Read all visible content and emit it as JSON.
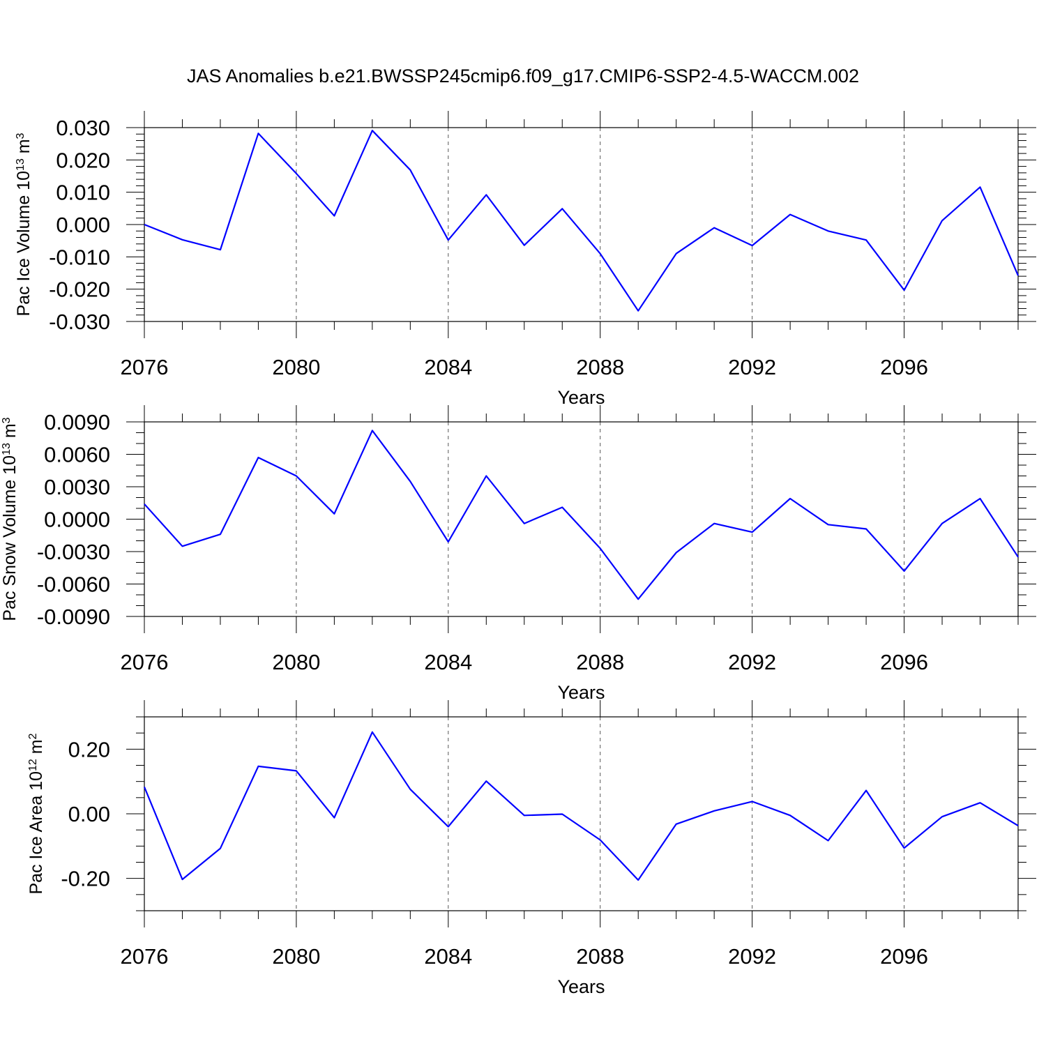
{
  "title": "JAS Anomalies b.e21.BWSSP245cmip6.f09_g17.CMIP6-SSP2-4.5-WACCM.002",
  "line_color": "#0000ff",
  "chart_data": [
    {
      "type": "line",
      "ylabel_main": "Pac Ice Volume 10",
      "ylabel_exp": "13",
      "ylabel_unit": " m",
      "ylabel_unit_exp": "3",
      "xlabel": "Years",
      "xlim": [
        2076,
        2099
      ],
      "ylim": [
        -0.03,
        0.03
      ],
      "yticks": [
        -0.03,
        -0.02,
        -0.01,
        0.0,
        0.01,
        0.02,
        0.03
      ],
      "ytick_labels": [
        "-0.030",
        "-0.020",
        "-0.010",
        "0.000",
        "0.010",
        "0.020",
        "0.030"
      ],
      "yminor_step": 0.002,
      "xticks": [
        2076,
        2080,
        2084,
        2088,
        2092,
        2096
      ],
      "xtick_labels": [
        "2076",
        "2080",
        "2084",
        "2088",
        "2092",
        "2096"
      ],
      "x": [
        2076,
        2077,
        2078,
        2079,
        2080,
        2081,
        2082,
        2083,
        2084,
        2085,
        2086,
        2087,
        2088,
        2089,
        2090,
        2091,
        2092,
        2093,
        2094,
        2095,
        2096,
        2097,
        2098,
        2099
      ],
      "values": [
        0.0,
        -0.0047,
        -0.0078,
        0.0282,
        0.0158,
        0.0027,
        0.0291,
        0.0169,
        -0.0048,
        0.0092,
        -0.0064,
        0.0049,
        -0.009,
        -0.0267,
        -0.009,
        -0.001,
        -0.0065,
        0.0031,
        -0.002,
        -0.0048,
        -0.0203,
        0.0012,
        0.0116,
        -0.0158
      ]
    },
    {
      "type": "line",
      "ylabel_main": "Pac Snow Volume 10",
      "ylabel_exp": "13",
      "ylabel_unit": " m",
      "ylabel_unit_exp": "3",
      "xlabel": "Years",
      "xlim": [
        2076,
        2099
      ],
      "ylim": [
        -0.009,
        0.009
      ],
      "yticks": [
        -0.009,
        -0.006,
        -0.003,
        0.0,
        0.003,
        0.006,
        0.009
      ],
      "ytick_labels": [
        "-0.0090",
        "-0.0060",
        "-0.0030",
        "0.0000",
        "0.0030",
        "0.0060",
        "0.0090"
      ],
      "yminor_step": 0.001,
      "xticks": [
        2076,
        2080,
        2084,
        2088,
        2092,
        2096
      ],
      "xtick_labels": [
        "2076",
        "2080",
        "2084",
        "2088",
        "2092",
        "2096"
      ],
      "x": [
        2076,
        2077,
        2078,
        2079,
        2080,
        2081,
        2082,
        2083,
        2084,
        2085,
        2086,
        2087,
        2088,
        2089,
        2090,
        2091,
        2092,
        2093,
        2094,
        2095,
        2096,
        2097,
        2098,
        2099
      ],
      "values": [
        0.0014,
        -0.0025,
        -0.0014,
        0.0057,
        0.004,
        0.0005,
        0.0082,
        0.0035,
        -0.0021,
        0.004,
        -0.0004,
        0.0011,
        -0.0027,
        -0.0074,
        -0.0031,
        -0.0004,
        -0.0012,
        0.0019,
        -0.0005,
        -0.0009,
        -0.0048,
        -0.0004,
        0.0019,
        -0.0035
      ]
    },
    {
      "type": "line",
      "ylabel_main": "Pac Ice Area 10",
      "ylabel_exp": "12",
      "ylabel_unit": " m",
      "ylabel_unit_exp": "2",
      "xlabel": "Years",
      "xlim": [
        2076,
        2099
      ],
      "ylim": [
        -0.3,
        0.3
      ],
      "yticks": [
        -0.2,
        0.0,
        0.2
      ],
      "ytick_labels": [
        "-0.20",
        "0.00",
        "0.20"
      ],
      "yminor_step": 0.05,
      "xticks": [
        2076,
        2080,
        2084,
        2088,
        2092,
        2096
      ],
      "xtick_labels": [
        "2076",
        "2080",
        "2084",
        "2088",
        "2092",
        "2096"
      ],
      "x": [
        2076,
        2077,
        2078,
        2079,
        2080,
        2081,
        2082,
        2083,
        2084,
        2085,
        2086,
        2087,
        2088,
        2089,
        2090,
        2091,
        2092,
        2093,
        2094,
        2095,
        2096,
        2097,
        2098,
        2099
      ],
      "values": [
        0.083,
        -0.203,
        -0.107,
        0.147,
        0.133,
        -0.012,
        0.253,
        0.076,
        -0.04,
        0.101,
        -0.005,
        -0.001,
        -0.081,
        -0.205,
        -0.032,
        0.009,
        0.038,
        -0.005,
        -0.083,
        0.072,
        -0.106,
        -0.009,
        0.034,
        -0.037
      ]
    }
  ]
}
